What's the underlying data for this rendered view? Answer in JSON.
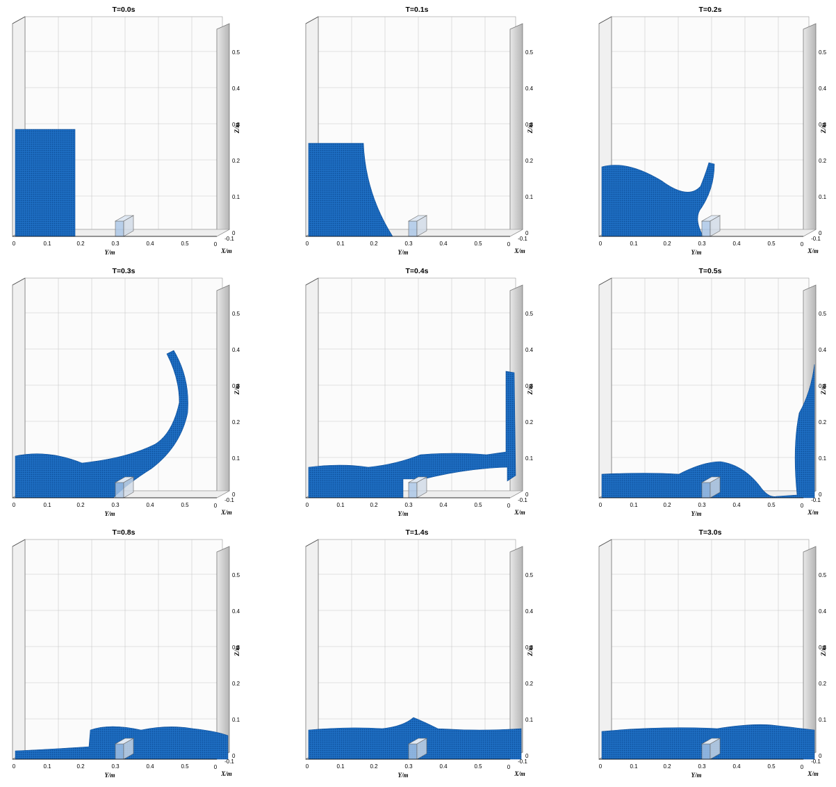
{
  "figure": {
    "axes": {
      "y_axis_label": "Y/m",
      "z_axis_label": "Z/m",
      "x_axis_label": "X/m",
      "y_ticks": [
        "0",
        "0.1",
        "0.2",
        "0.3",
        "0.4",
        "0.5"
      ],
      "z_ticks": [
        "0",
        "0.1",
        "0.2",
        "0.3",
        "0.4",
        "0.5"
      ],
      "x_ticks": [
        "0",
        "-0.1"
      ]
    },
    "colors": {
      "water": "#1f6fc4",
      "water_dark": "#0d4f9a",
      "obstacle": "#a8c4e6",
      "wall": "#b5b5b5"
    },
    "panels": [
      {
        "title": "T=0.0s"
      },
      {
        "title": "T=0.1s"
      },
      {
        "title": "T=0.2s"
      },
      {
        "title": "T=0.3s"
      },
      {
        "title": "T=0.4s"
      },
      {
        "title": "T=0.5s"
      },
      {
        "title": "T=0.8s"
      },
      {
        "title": "T=1.4s"
      },
      {
        "title": "T=3.0s"
      }
    ]
  }
}
